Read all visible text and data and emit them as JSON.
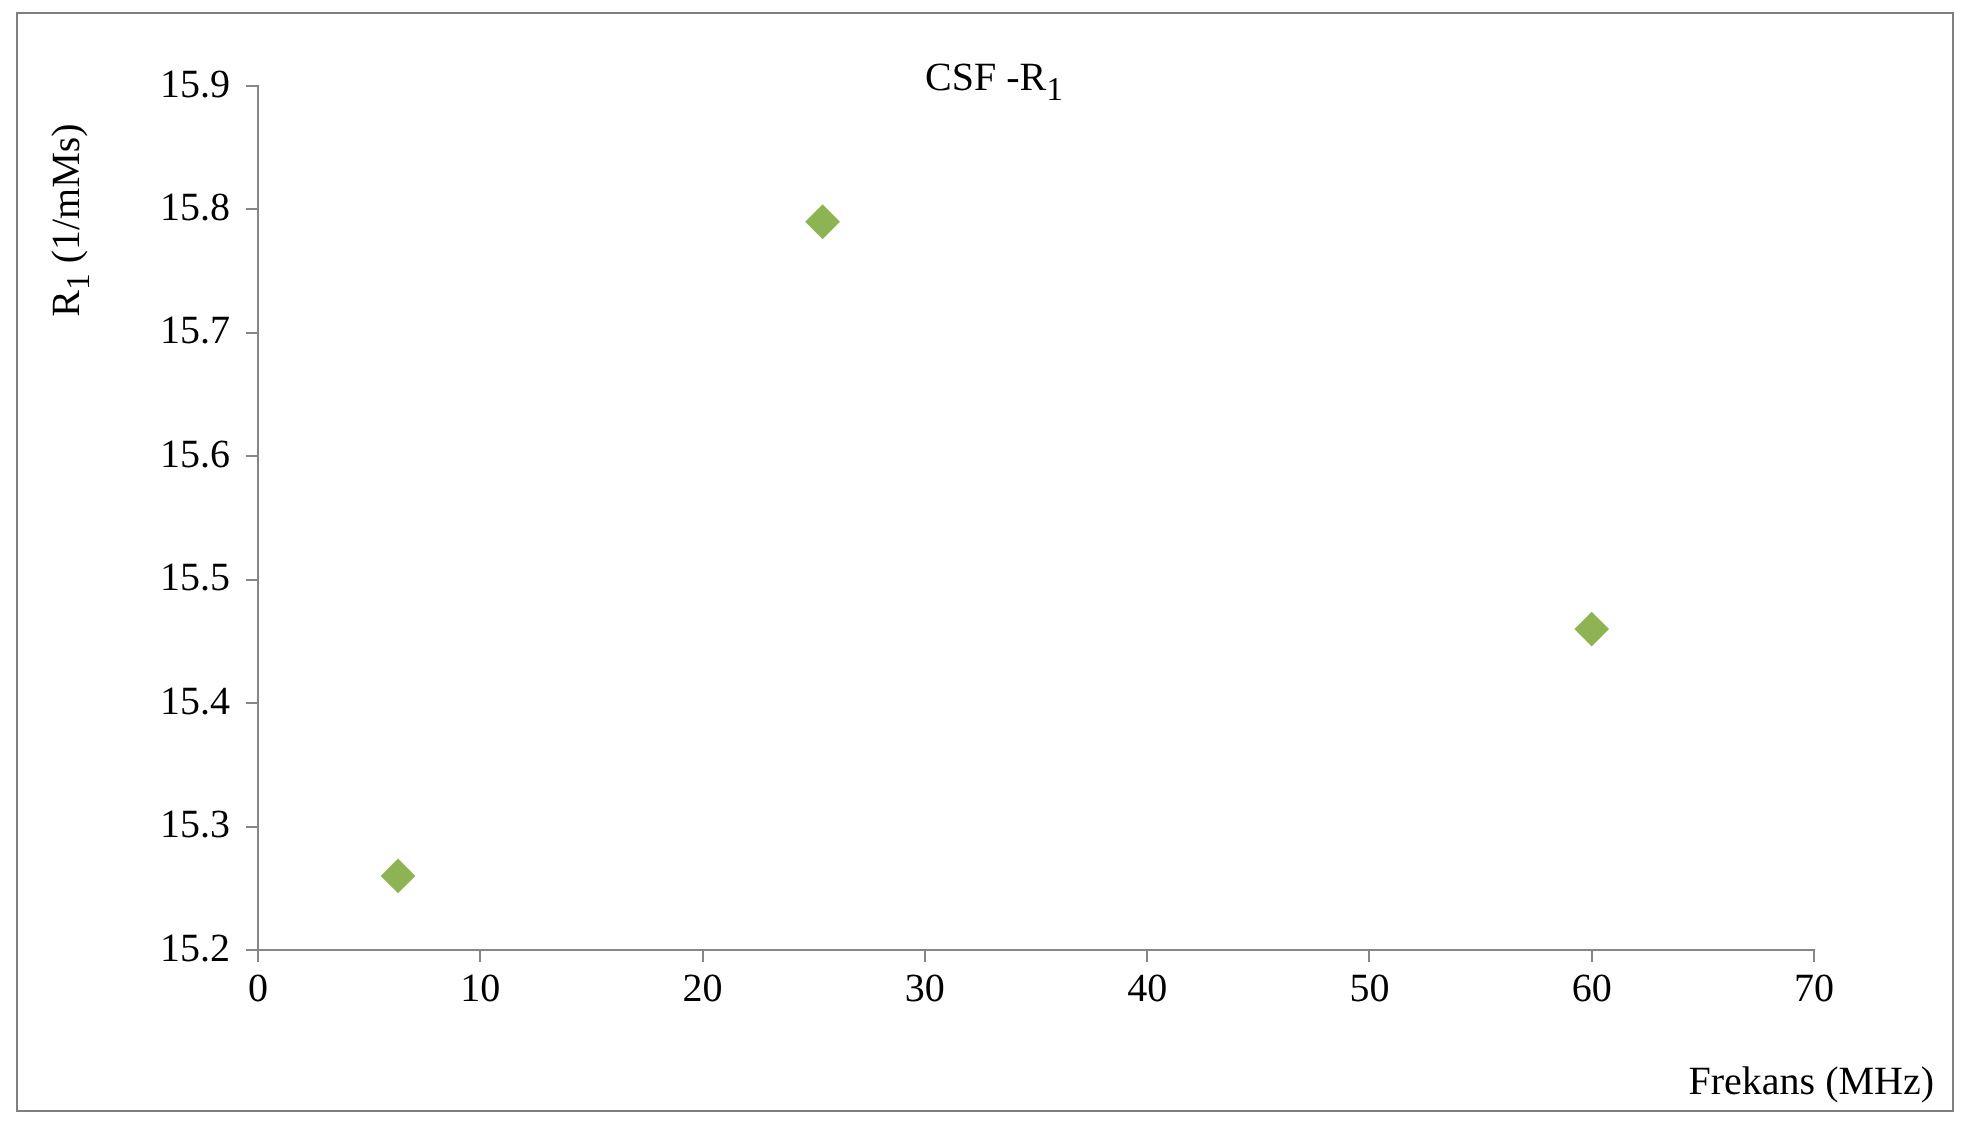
{
  "chart_data": {
    "type": "scatter",
    "title": "CSF -R$_{1}$",
    "xlabel": "Frekans (MHz)",
    "ylabel": "R$_{1}$ (1/mMs)",
    "series": [
      {
        "color": "#8db352",
        "x": [
          6.3,
          25.4,
          60
        ],
        "values": [
          15.26,
          15.79,
          15.46
        ]
      }
    ],
    "xlim": [
      0,
      70
    ],
    "xticks": [
      0,
      10,
      20,
      30,
      40,
      50,
      60,
      70
    ],
    "ylim": [
      15.2,
      15.9
    ],
    "yticks": [
      15.2,
      15.3,
      15.4,
      15.5,
      15.6,
      15.7,
      15.8,
      15.9
    ],
    "marker": "diamond",
    "grid": false,
    "legend": false
  }
}
